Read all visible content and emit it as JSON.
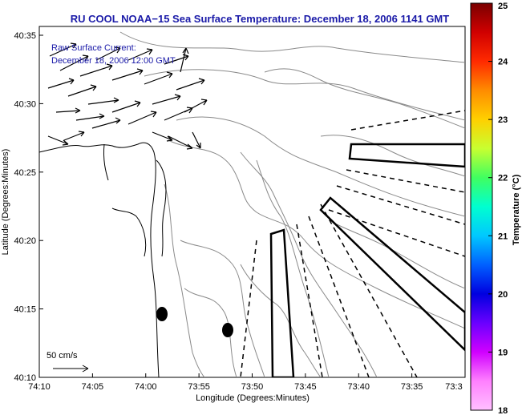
{
  "title": "RU COOL  NOAA−15  Sea Surface Temperature:  December 18, 2006 1141 GMT",
  "current_label": {
    "line1": "Raw Surface Current:",
    "line2": "December 18, 2006 12:00 GMT"
  },
  "scale_label": "50 cm/s",
  "x_axis": {
    "label": "Longitude (Degrees:Minutes)",
    "ticks": [
      "74:10",
      "74:05",
      "74:00",
      "73:55",
      "73:50",
      "73:45",
      "73:40",
      "73:35",
      "73:3"
    ]
  },
  "y_axis": {
    "label": "Latitude (Degrees:Minutes)",
    "ticks": [
      "40:35",
      "40:30",
      "40:25",
      "40:20",
      "40:15",
      "40:10"
    ]
  },
  "colorbar": {
    "label": "Temperature (°C)",
    "ticks": [
      "25",
      "24",
      "23",
      "22",
      "21",
      "20",
      "19",
      "18"
    ],
    "colors": [
      "#7a0000",
      "#d00000",
      "#ff2a00",
      "#ff8c00",
      "#ffd000",
      "#c8ff30",
      "#40ff60",
      "#00ffd0",
      "#00c8ff",
      "#0060ff",
      "#0000e0",
      "#6a00ff",
      "#d000ff",
      "#ff80ff",
      "#ffc0ff"
    ]
  },
  "colors": {
    "title": "#1a1aa8",
    "land": "#ffffff",
    "contour": "#8a8a8a"
  }
}
